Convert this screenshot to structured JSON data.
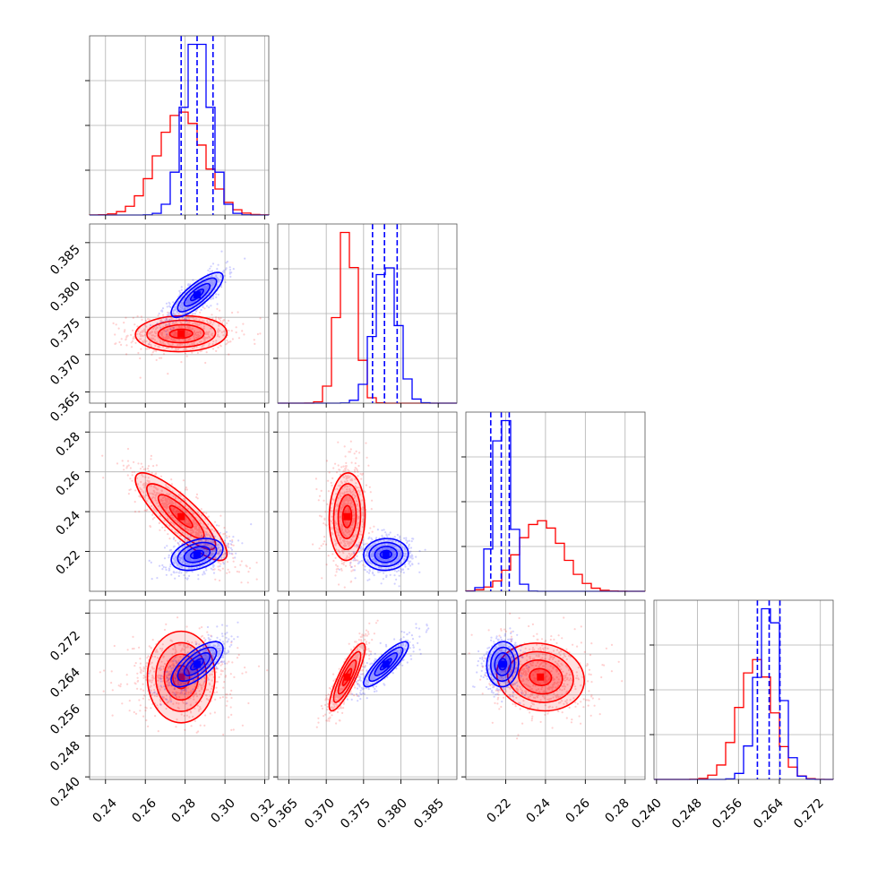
{
  "chart_data": {
    "type": "corner",
    "parameters": 4,
    "colors": {
      "series_a": "#ff0000",
      "series_b": "#0000ff"
    },
    "grid": true,
    "legend": "none",
    "axes": [
      {
        "range": [
          0.232,
          0.322
        ],
        "ticks": [
          0.24,
          0.26,
          0.28,
          0.3,
          0.32
        ],
        "tick_labels": [
          "0.24",
          "0.26",
          "0.28",
          "0.30",
          "0.32"
        ]
      },
      {
        "range": [
          0.3635,
          0.3875
        ],
        "ticks": [
          0.365,
          0.37,
          0.375,
          0.38,
          0.385
        ],
        "tick_labels": [
          "0.365",
          "0.370",
          "0.375",
          "0.380",
          "0.385"
        ]
      },
      {
        "range": [
          0.2,
          0.29
        ],
        "ticks": [
          0.22,
          0.24,
          0.26,
          0.28
        ],
        "tick_labels": [
          "0.22",
          "0.24",
          "0.26",
          "0.28"
        ]
      },
      {
        "range": [
          0.2395,
          0.2745
        ],
        "ticks": [
          0.24,
          0.248,
          0.256,
          0.264,
          0.272
        ],
        "tick_labels": [
          "0.240",
          "0.248",
          "0.256",
          "0.264",
          "0.272"
        ]
      }
    ],
    "series": [
      {
        "name": "",
        "color": "#ff0000",
        "means": [
          0.278,
          0.3728,
          0.2375,
          0.2595
        ],
        "sigmas": [
          0.0115,
          0.0012,
          0.011,
          0.0033
        ],
        "correlations": {
          "1-0": 0.05,
          "2-0": -0.85,
          "2-1": 0.05,
          "3-0": 0.0,
          "3-1": 0.85,
          "3-2": -0.1
        },
        "quantiles": []
      },
      {
        "name": "",
        "color": "#0000ff",
        "means": [
          0.286,
          0.378,
          0.2185,
          0.262
        ],
        "sigmas": [
          0.0065,
          0.0015,
          0.004,
          0.0022
        ],
        "correlations": {
          "1-0": 0.8,
          "2-0": 0.35,
          "2-1": 0.05,
          "3-0": 0.7,
          "3-1": 0.85,
          "3-2": 0.05
        },
        "quantiles": [
          [
            0.278,
            0.286,
            0.294
          ],
          [
            0.3762,
            0.3778,
            0.3795
          ],
          [
            0.2125,
            0.2178,
            0.2218
          ],
          [
            0.2597,
            0.262,
            0.2641
          ]
        ]
      }
    ]
  }
}
